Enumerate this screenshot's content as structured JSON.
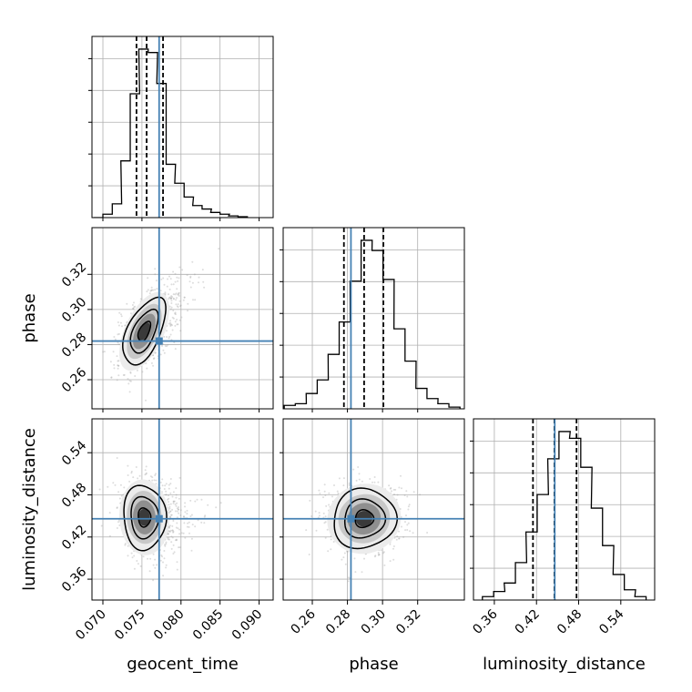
{
  "chart_data": {
    "type": "corner",
    "parameters": [
      "geocent_time",
      "phase",
      "luminosity_distance"
    ],
    "truths": {
      "geocent_time": 0.0772,
      "phase": 0.282,
      "luminosity_distance": 0.446
    },
    "quantiles": {
      "geocent_time": [
        0.0743,
        0.0756,
        0.0777
      ],
      "phase": [
        0.278,
        0.2895,
        0.3005
      ],
      "luminosity_distance": [
        0.415,
        0.4455,
        0.477
      ]
    },
    "ranges": {
      "geocent_time": [
        0.0686,
        0.0918
      ],
      "phase": [
        0.2434,
        0.3466
      ],
      "luminosity_distance": [
        0.3303,
        0.5882
      ]
    },
    "ticks": {
      "geocent_time": [
        "0.070",
        "0.075",
        "0.080",
        "0.085",
        "0.090"
      ],
      "phase": [
        "0.26",
        "0.28",
        "0.30",
        "0.32"
      ],
      "luminosity_distance": [
        "0.36",
        "0.42",
        "0.48",
        "0.54"
      ]
    },
    "histograms": {
      "geocent_time": {
        "bins": [
          0.0688,
          0.07,
          0.0712,
          0.0723,
          0.0735,
          0.0746,
          0.0758,
          0.0769,
          0.0781,
          0.0792,
          0.0804,
          0.0815,
          0.0827,
          0.0838,
          0.085,
          0.0861,
          0.0873
        ],
        "values": [
          0,
          0.02,
          0.08,
          0.33,
          0.72,
          0.98,
          0.96,
          0.78,
          0.31,
          0.2,
          0.12,
          0.07,
          0.05,
          0.03,
          0.02,
          0.01,
          0.005
        ]
      },
      "phase": {
        "bins": [
          0.244,
          0.2503,
          0.2565,
          0.2628,
          0.269,
          0.2753,
          0.2815,
          0.2878,
          0.294,
          0.3003,
          0.3065,
          0.3128,
          0.319,
          0.3253,
          0.3315,
          0.3378
        ],
        "values": [
          0.02,
          0.03,
          0.09,
          0.17,
          0.32,
          0.51,
          0.75,
          0.99,
          0.93,
          0.76,
          0.47,
          0.28,
          0.12,
          0.06,
          0.03,
          0.01
        ]
      },
      "luminosity_distance": {
        "bins": [
          0.343,
          0.359,
          0.374,
          0.39,
          0.405,
          0.421,
          0.436,
          0.452,
          0.467,
          0.483,
          0.498,
          0.514,
          0.529,
          0.545,
          0.56
        ],
        "values": [
          0.02,
          0.05,
          0.1,
          0.22,
          0.4,
          0.62,
          0.83,
          0.99,
          0.95,
          0.78,
          0.54,
          0.32,
          0.15,
          0.06,
          0.02
        ]
      }
    },
    "contour_pairs": [
      {
        "x": "geocent_time",
        "y": "phase",
        "mean": [
          0.0753,
          0.2875
        ],
        "sd": [
          0.0016,
          0.0112
        ],
        "rho": 0.55
      },
      {
        "x": "geocent_time",
        "y": "luminosity_distance",
        "mean": [
          0.0753,
          0.448
        ],
        "sd": [
          0.0016,
          0.027
        ],
        "rho": -0.05
      },
      {
        "x": "phase",
        "y": "luminosity_distance",
        "mean": [
          0.2895,
          0.446
        ],
        "sd": [
          0.0105,
          0.025
        ],
        "rho": 0.05
      }
    ],
    "grid": true,
    "colors": {
      "truth": "#4682b4",
      "hist": "#000000",
      "points": "#9e9e9e",
      "grid": "#b0b0b0"
    }
  }
}
